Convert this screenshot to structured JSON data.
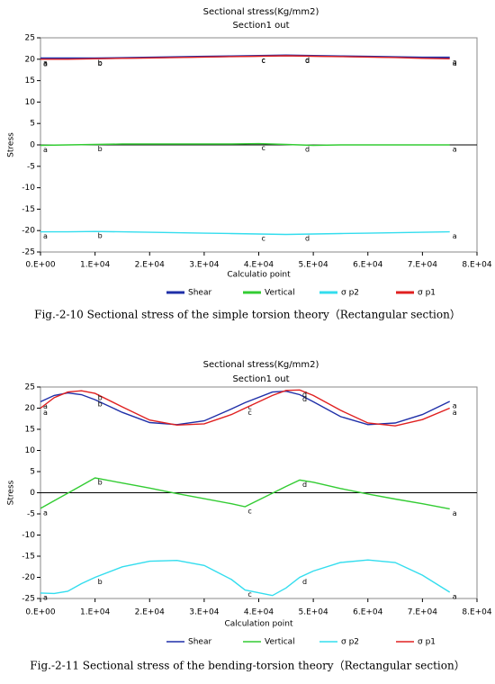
{
  "chart_data": [
    {
      "type": "line",
      "title": "Sectional stress(Kg/mm2)",
      "subtitle": "Section1 out",
      "x_label": "Calculatio point",
      "y_label": "Stress",
      "caption": "Fig.-2-10 Sectional stress of the simple torsion theory（Rectangular section）",
      "xlim": [
        0,
        80000
      ],
      "ylim": [
        -25,
        25
      ],
      "xticks": [
        {
          "value": 0,
          "label": "0.E+00"
        },
        {
          "value": 10000,
          "label": "1.E+04"
        },
        {
          "value": 20000,
          "label": "2.E+04"
        },
        {
          "value": 30000,
          "label": "3.E+04"
        },
        {
          "value": 40000,
          "label": "4.E+04"
        },
        {
          "value": 50000,
          "label": "5.E+04"
        },
        {
          "value": 60000,
          "label": "6.E+04"
        },
        {
          "value": 70000,
          "label": "7.E+04"
        },
        {
          "value": 80000,
          "label": "8.E+04"
        }
      ],
      "yticks": [
        -25,
        -20,
        -15,
        -10,
        -5,
        0,
        5,
        10,
        15,
        20,
        25
      ],
      "x": [
        0,
        5000,
        10000,
        15000,
        20000,
        25000,
        30000,
        35000,
        40000,
        45000,
        50000,
        55000,
        60000,
        65000,
        70000,
        75000
      ],
      "series": [
        {
          "name": "Shear",
          "color": "#1f2fa8",
          "values": [
            20.2,
            20.2,
            20.2,
            20.3,
            20.4,
            20.5,
            20.6,
            20.7,
            20.8,
            20.9,
            20.8,
            20.7,
            20.6,
            20.5,
            20.4,
            20.4
          ]
        },
        {
          "name": "Vertical",
          "color": "#33cc33",
          "values": [
            -0.1,
            0,
            0.1,
            0.2,
            0.2,
            0.2,
            0.2,
            0.2,
            0.3,
            0.1,
            -0.1,
            0,
            0,
            0,
            0,
            0
          ]
        },
        {
          "name": "σ p2",
          "color": "#33ddee",
          "values": [
            -20.3,
            -20.3,
            -20.2,
            -20.3,
            -20.4,
            -20.5,
            -20.6,
            -20.7,
            -20.8,
            -20.9,
            -20.8,
            -20.7,
            -20.6,
            -20.5,
            -20.4,
            -20.3
          ]
        },
        {
          "name": "σ p1",
          "color": "#e02020",
          "values": [
            20.0,
            20.0,
            20.1,
            20.2,
            20.3,
            20.4,
            20.5,
            20.6,
            20.7,
            20.8,
            20.7,
            20.6,
            20.5,
            20.4,
            20.2,
            20.1
          ]
        }
      ],
      "point_labels": [
        "a",
        "b",
        "c",
        "d",
        "a"
      ],
      "label_x": [
        0,
        10000,
        40000,
        48000,
        75000
      ]
    },
    {
      "type": "line",
      "title": "Sectional stress(Kg/mm2)",
      "subtitle": "Section1 out",
      "x_label": "Calculation point",
      "y_label": "Stress",
      "caption": "Fig.-2-11 Sectional stress of the bending-torsion theory（Rectangular section）",
      "xlim": [
        0,
        80000
      ],
      "ylim": [
        -25,
        25
      ],
      "xticks": [
        {
          "value": 0,
          "label": "0.E+00"
        },
        {
          "value": 10000,
          "label": "1.E+04"
        },
        {
          "value": 20000,
          "label": "2.E+04"
        },
        {
          "value": 30000,
          "label": "3.E+04"
        },
        {
          "value": 40000,
          "label": "4.E+04"
        },
        {
          "value": 50000,
          "label": "5.E+04"
        },
        {
          "value": 60000,
          "label": "6.E+04"
        },
        {
          "value": 70000,
          "label": "7.E+04"
        },
        {
          "value": 80000,
          "label": "8.E+04"
        }
      ],
      "yticks": [
        -25,
        -20,
        -15,
        -10,
        -5,
        0,
        5,
        10,
        15,
        20,
        25
      ],
      "x": [
        0,
        2500,
        5000,
        7500,
        10000,
        15000,
        20000,
        25000,
        30000,
        35000,
        37500,
        42500,
        45000,
        47500,
        50000,
        55000,
        60000,
        65000,
        70000,
        75000
      ],
      "series": [
        {
          "name": "Shear",
          "color": "#1f2fa8",
          "values": [
            21.5,
            23,
            23.6,
            23.2,
            22,
            19,
            16.6,
            16.1,
            17,
            19.8,
            21.3,
            23.8,
            24,
            23.2,
            21.5,
            18,
            16.1,
            16.5,
            18.5,
            21.6
          ]
        },
        {
          "name": "Vertical",
          "color": "#33cc33",
          "values": [
            -3.7,
            -1.9,
            -0.1,
            1.7,
            3.5,
            2.3,
            1.1,
            -0.2,
            -1.4,
            -2.6,
            -3.3,
            -0.1,
            1.5,
            3.0,
            2.5,
            1.0,
            -0.3,
            -1.5,
            -2.6,
            -3.8
          ]
        },
        {
          "name": "σ p2",
          "color": "#33ddee",
          "values": [
            -23.7,
            -23.8,
            -23.3,
            -21.5,
            -20,
            -17.5,
            -16.2,
            -16,
            -17.2,
            -20.5,
            -23,
            -24.3,
            -22.5,
            -20,
            -18.5,
            -16.5,
            -15.9,
            -16.5,
            -19.5,
            -23.5
          ]
        },
        {
          "name": "σ p1",
          "color": "#e02020",
          "values": [
            20,
            22.5,
            23.8,
            24.1,
            23.5,
            20.3,
            17.2,
            16,
            16.3,
            18.5,
            20,
            23,
            24.2,
            24.3,
            23,
            19.5,
            16.5,
            15.8,
            17.3,
            20
          ]
        }
      ],
      "point_labels": [
        "a",
        "b",
        "c",
        "d",
        "a"
      ],
      "label_x": [
        0,
        10000,
        37500,
        47500,
        75000
      ]
    }
  ]
}
